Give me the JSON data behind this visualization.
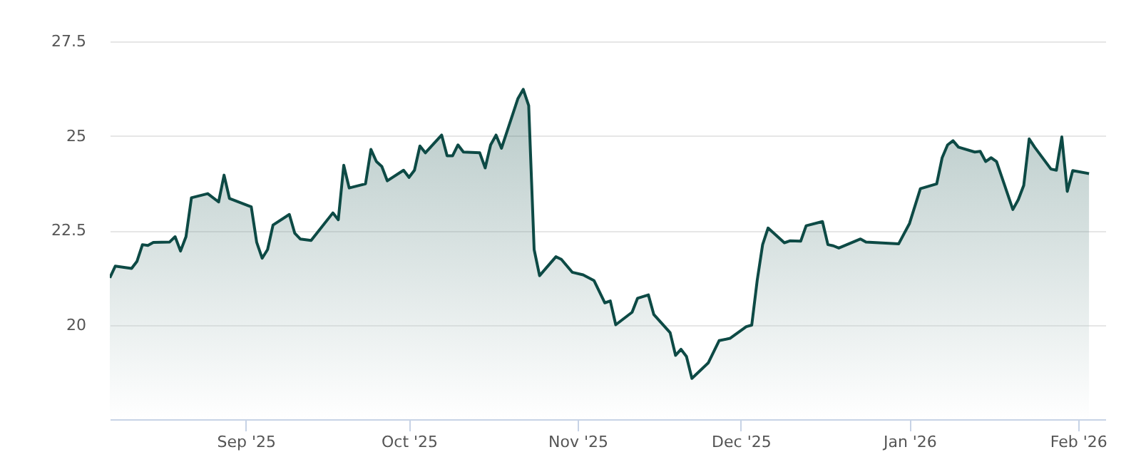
{
  "chart_data": {
    "type": "area",
    "color": "#0d4a45",
    "x": [
      "2025-08-07",
      "2025-08-08",
      "2025-08-11",
      "2025-08-12",
      "2025-08-13",
      "2025-08-14",
      "2025-08-15",
      "2025-08-18",
      "2025-08-19",
      "2025-08-20",
      "2025-08-21",
      "2025-08-22",
      "2025-08-25",
      "2025-08-27",
      "2025-08-28",
      "2025-08-29",
      "2025-09-02",
      "2025-09-03",
      "2025-09-04",
      "2025-09-05",
      "2025-09-06",
      "2025-09-09",
      "2025-09-10",
      "2025-09-11",
      "2025-09-13",
      "2025-09-17",
      "2025-09-18",
      "2025-09-19",
      "2025-09-20",
      "2025-09-23",
      "2025-09-24",
      "2025-09-25",
      "2025-09-26",
      "2025-09-27",
      "2025-09-30",
      "2025-10-01",
      "2025-10-02",
      "2025-10-03",
      "2025-10-04",
      "2025-10-07",
      "2025-10-08",
      "2025-10-09",
      "2025-10-10",
      "2025-10-11",
      "2025-10-14",
      "2025-10-15",
      "2025-10-16",
      "2025-10-17",
      "2025-10-18",
      "2025-10-21",
      "2025-10-22",
      "2025-10-23",
      "2025-10-24",
      "2025-10-25",
      "2025-10-28",
      "2025-10-29",
      "2025-10-31",
      "2025-11-02",
      "2025-11-04",
      "2025-11-06",
      "2025-11-07",
      "2025-11-08",
      "2025-11-11",
      "2025-11-12",
      "2025-11-14",
      "2025-11-15",
      "2025-11-18",
      "2025-11-19",
      "2025-11-20",
      "2025-11-21",
      "2025-11-22",
      "2025-11-25",
      "2025-11-27",
      "2025-11-29",
      "2025-12-02",
      "2025-12-03",
      "2025-12-04",
      "2025-12-05",
      "2025-12-06",
      "2025-12-09",
      "2025-12-10",
      "2025-12-12",
      "2025-12-13",
      "2025-12-16",
      "2025-12-17",
      "2025-12-18",
      "2025-12-19",
      "2025-12-23",
      "2025-12-24",
      "2025-12-30",
      "2026-01-01",
      "2026-01-03",
      "2026-01-06",
      "2026-01-07",
      "2026-01-08",
      "2026-01-09",
      "2026-01-10",
      "2026-01-13",
      "2026-01-14",
      "2026-01-15",
      "2026-01-16",
      "2026-01-17",
      "2026-01-20",
      "2026-01-21",
      "2026-01-22",
      "2026-01-23",
      "2026-01-24",
      "2026-01-27",
      "2026-01-28",
      "2026-01-29",
      "2026-01-30",
      "2026-01-31",
      "2026-02-03"
    ],
    "values": [
      21.24,
      21.55,
      21.49,
      21.68,
      22.12,
      22.1,
      22.18,
      22.19,
      22.33,
      21.95,
      22.33,
      23.36,
      23.47,
      23.25,
      23.96,
      23.34,
      23.12,
      22.18,
      21.76,
      21.99,
      22.64,
      22.92,
      22.42,
      22.27,
      22.23,
      22.96,
      22.78,
      24.22,
      23.62,
      23.73,
      24.64,
      24.32,
      24.19,
      23.81,
      24.09,
      23.9,
      24.09,
      24.73,
      24.55,
      25.02,
      24.47,
      24.47,
      24.76,
      24.57,
      24.55,
      24.15,
      24.76,
      25.02,
      24.67,
      25.98,
      26.23,
      25.8,
      21.99,
      21.3,
      21.8,
      21.73,
      21.39,
      21.32,
      21.17,
      20.58,
      20.63,
      20.0,
      20.33,
      20.7,
      20.79,
      20.27,
      19.79,
      19.19,
      19.35,
      19.16,
      18.58,
      18.99,
      19.58,
      19.64,
      19.95,
      19.99,
      21.17,
      22.12,
      22.56,
      22.17,
      22.22,
      22.21,
      22.62,
      22.73,
      22.12,
      22.09,
      22.03,
      22.27,
      22.19,
      22.14,
      22.68,
      23.6,
      23.73,
      24.42,
      24.76,
      24.87,
      24.7,
      24.57,
      24.59,
      24.32,
      24.42,
      24.32,
      23.05,
      23.31,
      23.69,
      24.92,
      24.7,
      24.12,
      24.09,
      24.97,
      23.53,
      24.08,
      24.0
    ],
    "xlim": [
      "2025-08-07",
      "2026-02-06"
    ],
    "xticks": [
      {
        "value": "2025-09-01",
        "label": "Sep '25"
      },
      {
        "value": "2025-10-01",
        "label": "Oct '25"
      },
      {
        "value": "2025-11-01",
        "label": "Nov '25"
      },
      {
        "value": "2025-12-01",
        "label": "Dec '25"
      },
      {
        "value": "2026-01-01",
        "label": "Jan '26"
      },
      {
        "value": "2026-02-01",
        "label": "Feb '26"
      }
    ],
    "ylim": [
      17.5,
      27.5
    ],
    "yticks": [
      20,
      22.5,
      25,
      27.5
    ],
    "grid": "y"
  }
}
